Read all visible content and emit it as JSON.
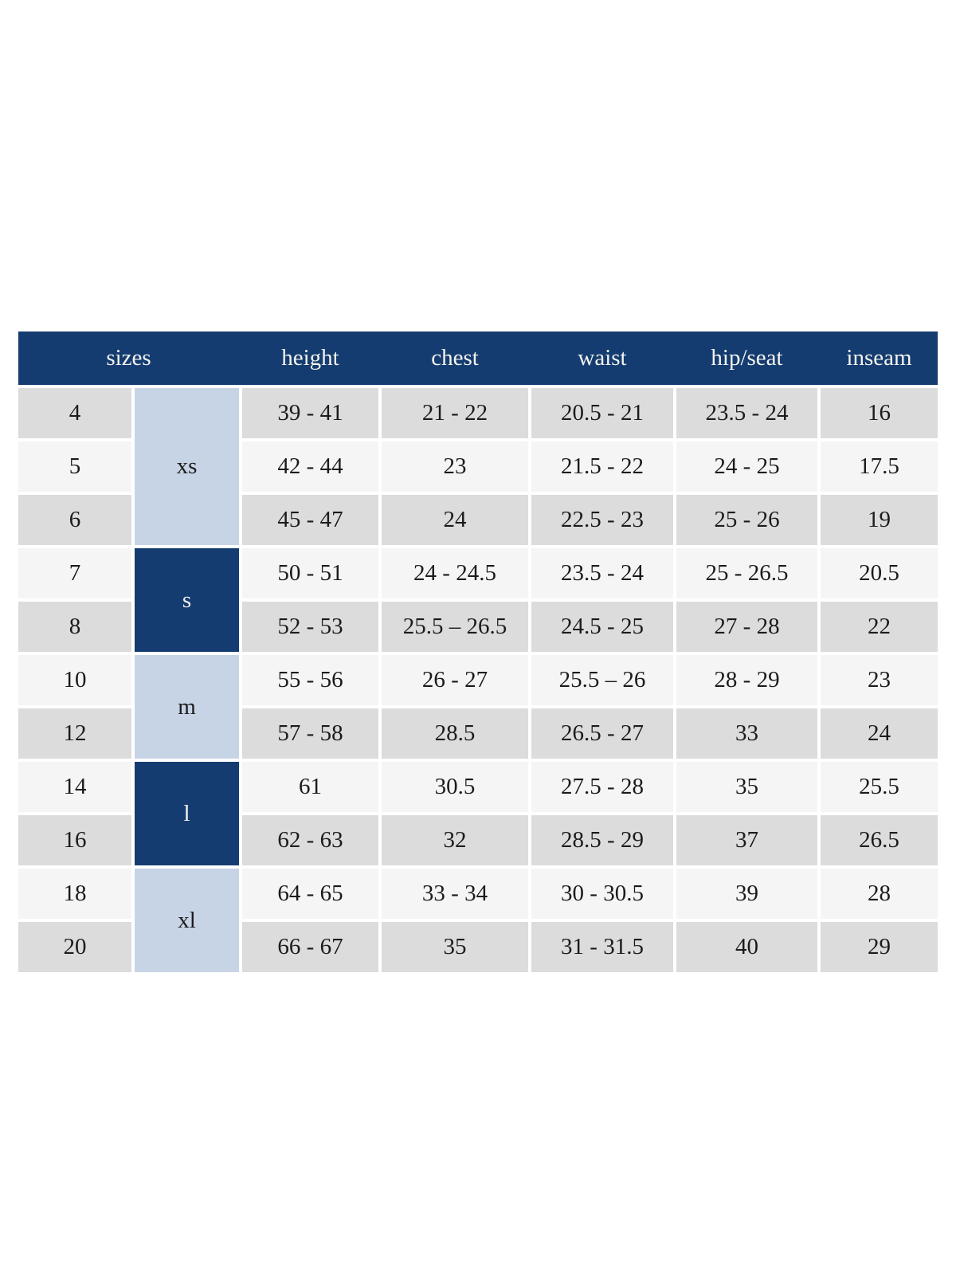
{
  "colors": {
    "page_bg": "#ffffff",
    "header_bg": "#143c70",
    "header_text": "#f5f3ef",
    "group_dark_bg": "#143c70",
    "group_dark_text": "#f5f3ef",
    "group_light_bg": "#c7d4e5",
    "row_gray": "#dcdcdc",
    "row_light": "#f5f5f5",
    "cell_text": "#1b1b1b"
  },
  "size_chart": {
    "headers": {
      "sizes": "sizes",
      "height": "height",
      "chest": "chest",
      "waist": "waist",
      "hip_seat": "hip/seat",
      "inseam": "inseam"
    },
    "groups": [
      {
        "label": "xs",
        "rows": 3,
        "variant": "light"
      },
      {
        "label": "s",
        "rows": 2,
        "variant": "dark"
      },
      {
        "label": "m",
        "rows": 2,
        "variant": "light"
      },
      {
        "label": "l",
        "rows": 2,
        "variant": "dark"
      },
      {
        "label": "xl",
        "rows": 2,
        "variant": "light"
      }
    ],
    "rows": [
      {
        "size": "4",
        "height": "39 - 41",
        "chest": "21 - 22",
        "waist": "20.5 - 21",
        "hip_seat": "23.5 - 24",
        "inseam": "16"
      },
      {
        "size": "5",
        "height": "42 - 44",
        "chest": "23",
        "waist": "21.5 - 22",
        "hip_seat": "24 - 25",
        "inseam": "17.5"
      },
      {
        "size": "6",
        "height": "45 - 47",
        "chest": "24",
        "waist": "22.5 - 23",
        "hip_seat": "25 - 26",
        "inseam": "19"
      },
      {
        "size": "7",
        "height": "50 - 51",
        "chest": "24 - 24.5",
        "waist": "23.5 - 24",
        "hip_seat": "25 - 26.5",
        "inseam": "20.5"
      },
      {
        "size": "8",
        "height": "52 - 53",
        "chest": "25.5 – 26.5",
        "waist": "24.5 - 25",
        "hip_seat": "27 - 28",
        "inseam": "22"
      },
      {
        "size": "10",
        "height": "55 - 56",
        "chest": "26 - 27",
        "waist": "25.5 – 26",
        "hip_seat": "28 - 29",
        "inseam": "23"
      },
      {
        "size": "12",
        "height": "57 - 58",
        "chest": "28.5",
        "waist": "26.5 - 27",
        "hip_seat": "33",
        "inseam": "24"
      },
      {
        "size": "14",
        "height": "61",
        "chest": "30.5",
        "waist": "27.5 - 28",
        "hip_seat": "35",
        "inseam": "25.5"
      },
      {
        "size": "16",
        "height": "62 - 63",
        "chest": "32",
        "waist": "28.5 - 29",
        "hip_seat": "37",
        "inseam": "26.5"
      },
      {
        "size": "18",
        "height": "64 - 65",
        "chest": "33 - 34",
        "waist": "30 - 30.5",
        "hip_seat": "39",
        "inseam": "28"
      },
      {
        "size": "20",
        "height": "66 - 67",
        "chest": "35",
        "waist": "31 - 31.5",
        "hip_seat": "40",
        "inseam": "29"
      }
    ]
  }
}
